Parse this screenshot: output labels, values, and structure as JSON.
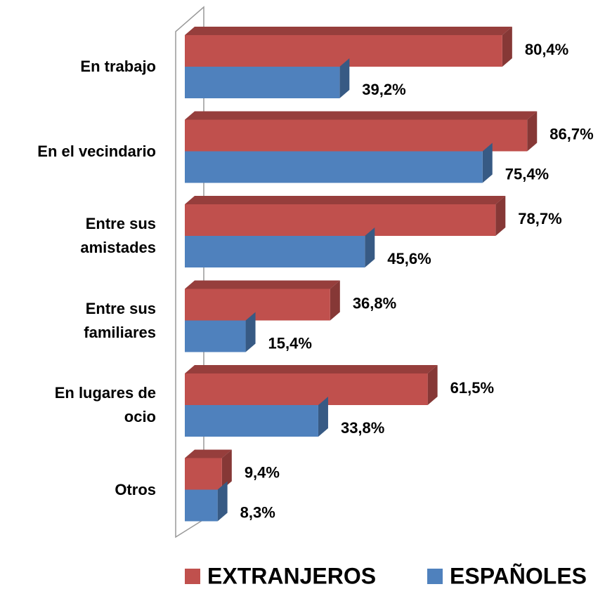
{
  "chart_data": {
    "type": "bar",
    "categories": [
      "En trabajo",
      "En el vecindario",
      "Entre sus\namistades",
      "Entre sus\nfamiliares",
      "En lugares de\nocio",
      "Otros"
    ],
    "series": [
      {
        "name": "EXTRANJEROS",
        "color": "#c0504d",
        "values": [
          80.4,
          86.7,
          78.7,
          36.8,
          61.5,
          9.4
        ],
        "value_labels": [
          "80,4%",
          "86,7%",
          "78,7%",
          "36,8%",
          "61,5%",
          "9,4%"
        ]
      },
      {
        "name": "ESPAÑOLES",
        "color": "#4f81bd",
        "values": [
          39.2,
          75.4,
          45.6,
          15.4,
          33.8,
          8.3
        ],
        "value_labels": [
          "39,2%",
          "75,4%",
          "45,6%",
          "15,4%",
          "33,8%",
          "8,3%"
        ]
      }
    ],
    "xlim": [
      0,
      100
    ]
  }
}
